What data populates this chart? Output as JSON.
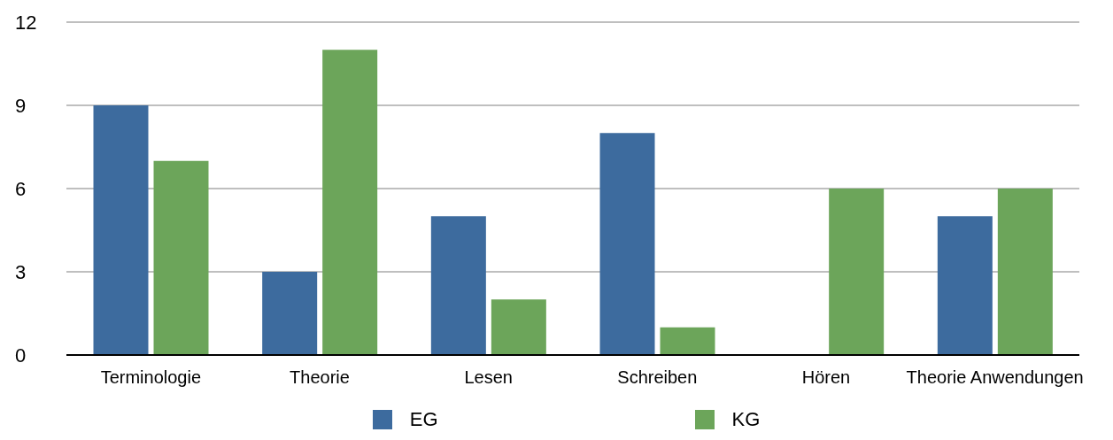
{
  "chart_data": {
    "type": "bar",
    "categories": [
      "Terminologie",
      "Theorie",
      "Lesen",
      "Schreiben",
      "Hören",
      "Theorie Anwendungen"
    ],
    "series": [
      {
        "name": "EG",
        "color": "#3d6b9e",
        "values": [
          9,
          3,
          5,
          8,
          0,
          5
        ]
      },
      {
        "name": "KG",
        "color": "#6ca55a",
        "values": [
          7,
          11,
          2,
          1,
          6,
          6
        ]
      }
    ],
    "ylim": [
      0,
      12
    ],
    "yticks": [
      0,
      3,
      6,
      9,
      12
    ],
    "grid": "y",
    "legend": "bottom"
  }
}
